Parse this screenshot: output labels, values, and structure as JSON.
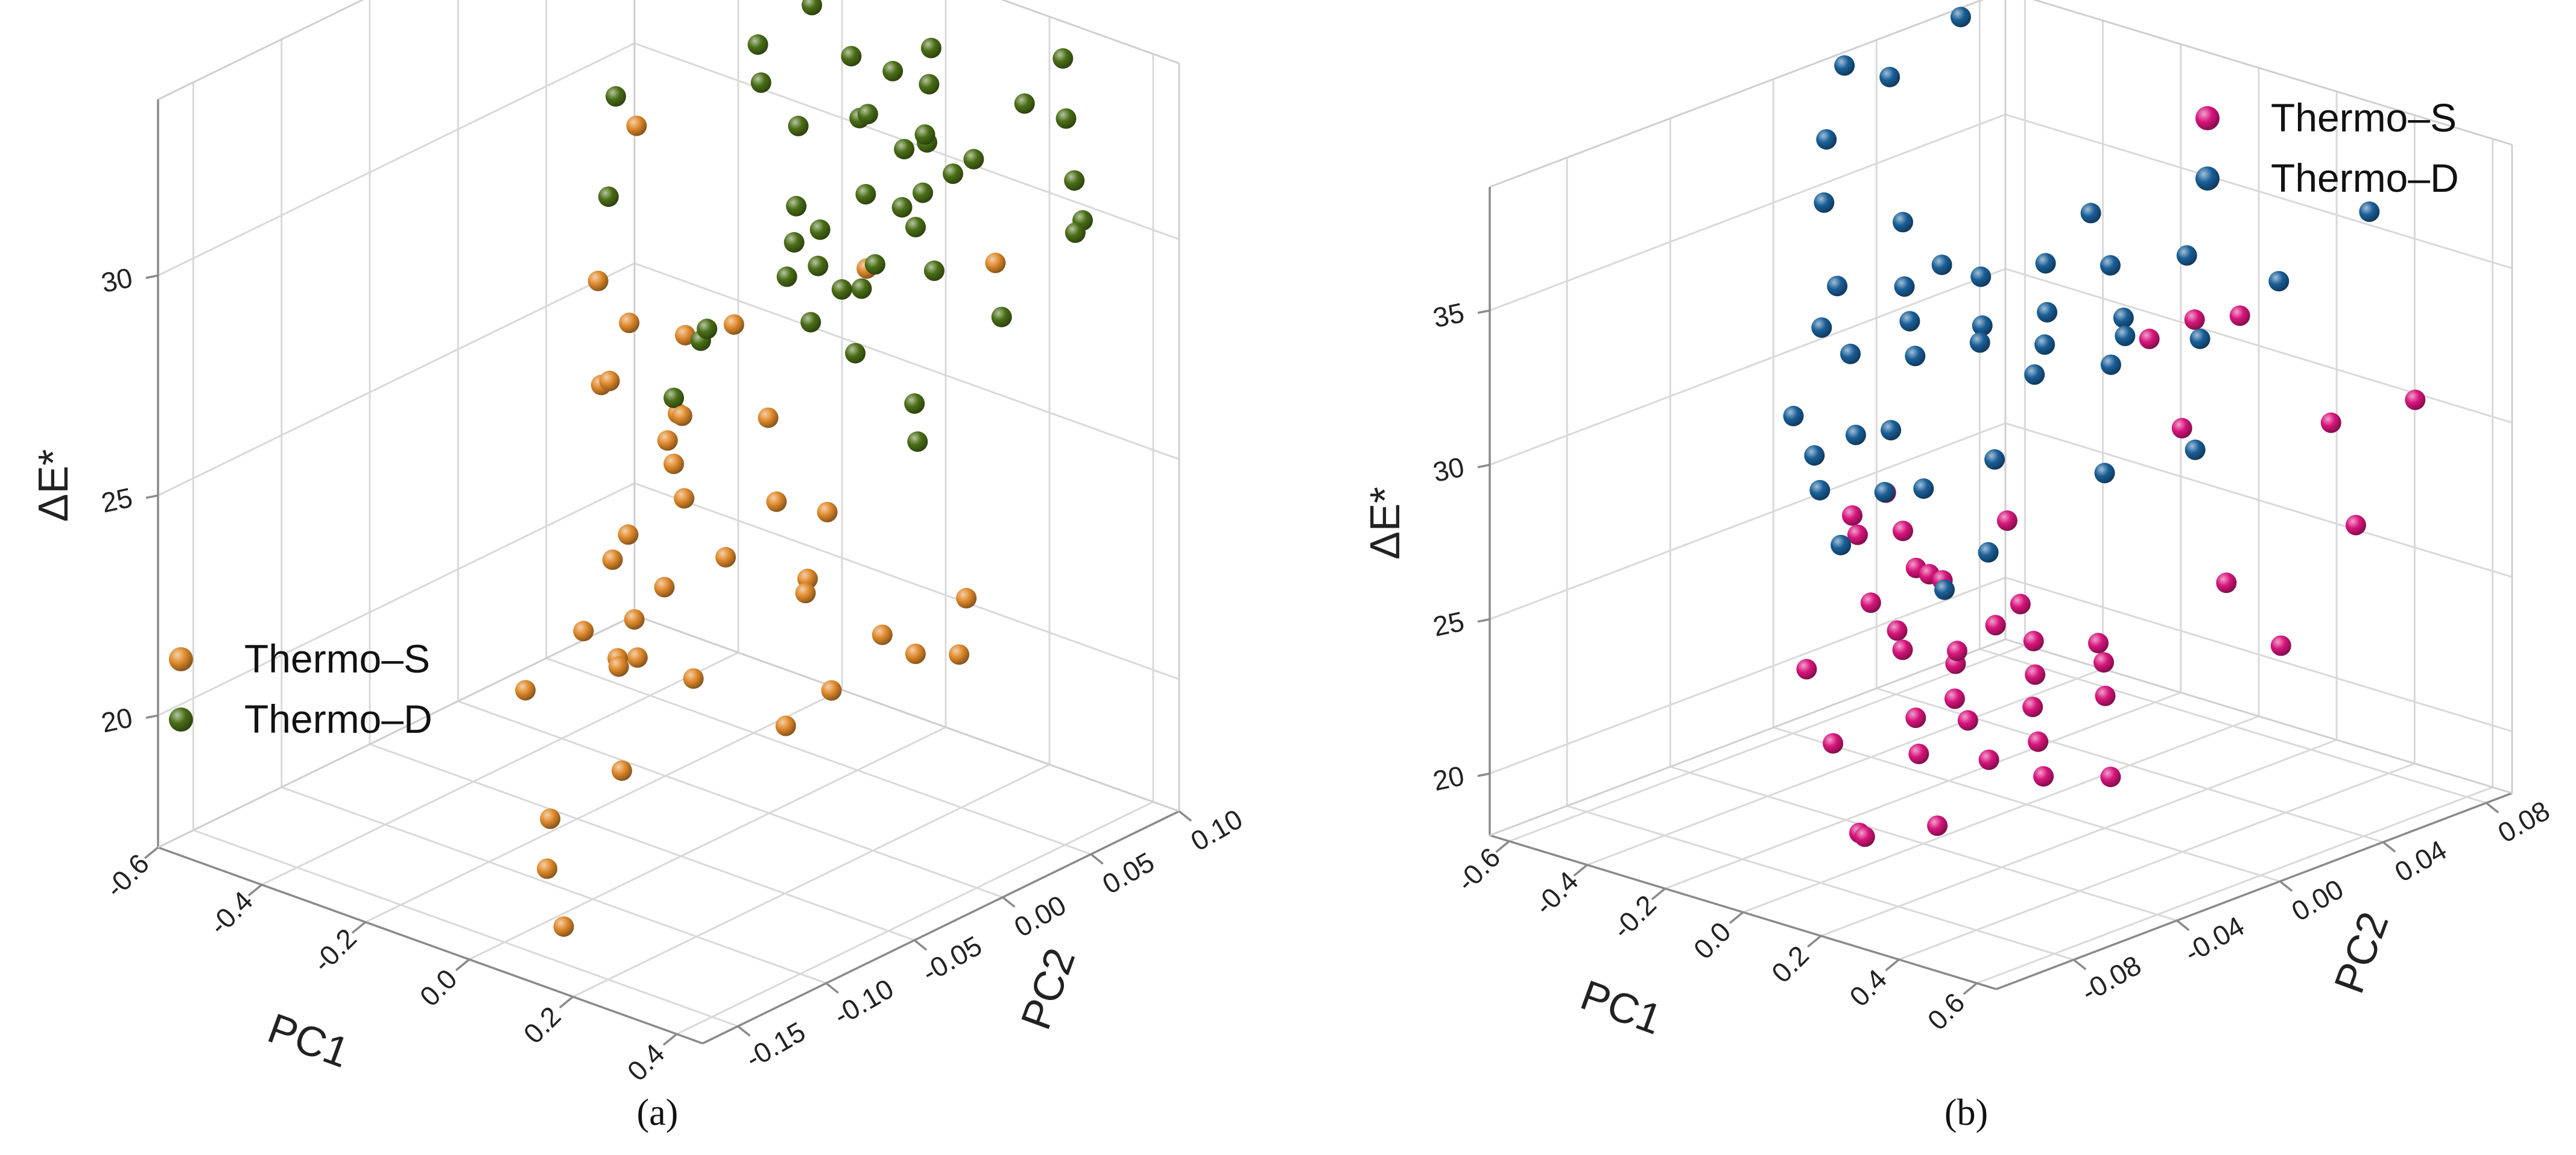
{
  "colors": {
    "thermo_s_a": "#e08a2c",
    "thermo_d_a": "#4a6e16",
    "thermo_s_b": "#d8157c",
    "thermo_d_b": "#1a5f98"
  },
  "chart_data": [
    {
      "type": "scatter",
      "subtype": "3d-scatter",
      "caption": "(a)",
      "xlabel": "PC1",
      "ylabel": "PC2",
      "zlabel": "ΔE*",
      "xlim": [
        -0.6,
        0.45
      ],
      "ylim": [
        -0.17,
        0.1
      ],
      "zlim": [
        17,
        34
      ],
      "x_ticks": [
        "-0.6",
        "-0.4",
        "-0.2",
        "0.0",
        "0.2",
        "0.4"
      ],
      "y_ticks": [
        "-0.15",
        "-0.10",
        "-0.05",
        "0.00",
        "0.05",
        "0.10"
      ],
      "z_ticks": [
        "20",
        "25",
        "30"
      ],
      "grid": true,
      "legend": {
        "position": "bottom-left",
        "entries": [
          "Thermo–S",
          "Thermo–D"
        ]
      },
      "series": [
        {
          "name": "Thermo–S",
          "points": [
            [
              -0.46,
              0.06,
              29.5
            ],
            [
              -0.5,
              0.05,
              26.0
            ],
            [
              -0.46,
              0.04,
              24.0
            ],
            [
              -0.41,
              0.03,
              24.5
            ],
            [
              -0.34,
              0.02,
              21.5
            ],
            [
              -0.27,
              -0.0,
              27.0
            ],
            [
              -0.23,
              0.02,
              26.5
            ],
            [
              -0.21,
              0.01,
              25.0
            ],
            [
              -0.15,
              -0.01,
              24.5
            ],
            [
              -0.2,
              -0.03,
              22.5
            ],
            [
              -0.1,
              -0.02,
              26.0
            ],
            [
              -0.06,
              -0.04,
              26.0
            ],
            [
              -0.09,
              -0.05,
              22.0
            ],
            [
              -0.05,
              -0.06,
              21.5
            ],
            [
              -0.02,
              -0.08,
              22.0
            ],
            [
              0.04,
              -0.06,
              25.5
            ],
            [
              0.07,
              -0.08,
              24.0
            ],
            [
              0.1,
              -0.03,
              27.0
            ],
            [
              0.12,
              -0.06,
              24.5
            ],
            [
              0.15,
              -0.04,
              25.5
            ],
            [
              0.18,
              -0.02,
              25.0
            ],
            [
              0.21,
              -0.04,
              24.0
            ],
            [
              0.05,
              -0.1,
              22.5
            ],
            [
              0.09,
              -0.11,
              20.5
            ],
            [
              0.16,
              -0.09,
              22.5
            ],
            [
              0.24,
              -0.05,
              24.0
            ],
            [
              0.27,
              -0.07,
              21.5
            ],
            [
              0.29,
              -0.05,
              22.0
            ],
            [
              0.32,
              -0.03,
              23.0
            ],
            [
              0.35,
              -0.02,
              22.5
            ],
            [
              0.38,
              0.0,
              23.5
            ],
            [
              0.4,
              -0.01,
              22.5
            ],
            [
              0.02,
              -0.13,
              19.5
            ],
            [
              0.08,
              -0.14,
              17.5
            ],
            [
              -0.02,
              -0.12,
              18.0
            ],
            [
              -0.12,
              -0.07,
              22.0
            ],
            [
              0.0,
              -0.02,
              28.5
            ],
            [
              0.12,
              0.02,
              29.5
            ],
            [
              0.3,
              0.04,
              30.0
            ],
            [
              -0.3,
              -0.05,
              19.5
            ]
          ]
        },
        {
          "name": "Thermo–D",
          "points": [
            [
              -0.55,
              0.07,
              33.5
            ],
            [
              -0.5,
              0.06,
              30.0
            ],
            [
              -0.48,
              0.05,
              28.0
            ],
            [
              -0.4,
              0.08,
              33.5
            ],
            [
              -0.33,
              0.09,
              34.5
            ],
            [
              -0.3,
              0.08,
              34.0
            ],
            [
              -0.26,
              0.07,
              32.0
            ],
            [
              -0.22,
              0.06,
              31.5
            ],
            [
              -0.19,
              0.08,
              33.0
            ],
            [
              -0.14,
              0.09,
              34.5
            ],
            [
              -0.1,
              0.08,
              34.0
            ],
            [
              -0.08,
              0.07,
              32.5
            ],
            [
              -0.03,
              0.06,
              31.5
            ],
            [
              0.0,
              0.07,
              32.5
            ],
            [
              0.04,
              0.08,
              33.0
            ],
            [
              0.07,
              0.07,
              32.5
            ],
            [
              0.1,
              0.06,
              31.5
            ],
            [
              0.13,
              0.05,
              32.0
            ],
            [
              0.16,
              0.04,
              31.0
            ],
            [
              0.19,
              0.06,
              31.5
            ],
            [
              0.22,
              0.08,
              32.5
            ],
            [
              0.26,
              0.09,
              33.5
            ],
            [
              0.3,
              0.08,
              32.5
            ],
            [
              0.35,
              0.07,
              31.5
            ],
            [
              0.4,
              0.06,
              31.0
            ],
            [
              -0.05,
              0.03,
              30.0
            ],
            [
              -0.02,
              0.02,
              29.5
            ],
            [
              0.0,
              0.01,
              29.0
            ],
            [
              0.03,
              0.02,
              30.0
            ],
            [
              0.06,
              0.01,
              29.5
            ],
            [
              0.08,
              0.0,
              28.5
            ],
            [
              0.11,
              0.02,
              29.0
            ],
            [
              0.14,
              0.0,
              29.5
            ],
            [
              0.17,
              0.01,
              30.0
            ],
            [
              0.2,
              -0.01,
              28.5
            ],
            [
              -0.12,
              0.0,
              27.5
            ],
            [
              -0.15,
              -0.01,
              26.0
            ],
            [
              -0.2,
              0.02,
              26.5
            ],
            [
              0.25,
              0.02,
              30.0
            ],
            [
              0.28,
              0.0,
              27.5
            ],
            [
              0.32,
              -0.01,
              27.0
            ],
            [
              0.38,
              0.02,
              29.5
            ],
            [
              0.42,
              0.05,
              31.0
            ],
            [
              -0.08,
              0.04,
              31.5
            ],
            [
              0.02,
              0.05,
              32.0
            ],
            [
              0.05,
              0.04,
              30.5
            ],
            [
              0.09,
              0.05,
              31.5
            ],
            [
              0.12,
              0.04,
              30.5
            ],
            [
              0.15,
              0.06,
              31.0
            ],
            [
              0.18,
              0.03,
              30.5
            ]
          ]
        }
      ]
    },
    {
      "type": "scatter",
      "subtype": "3d-scatter",
      "caption": "(b)",
      "xlabel": "PC1",
      "ylabel": "PC2",
      "zlabel": "ΔE*",
      "xlim": [
        -0.65,
        0.65
      ],
      "ylim": [
        -0.11,
        0.09
      ],
      "zlim": [
        18,
        39
      ],
      "x_ticks": [
        "-0.6",
        "-0.4",
        "-0.2",
        "0.0",
        "0.2",
        "0.4",
        "0.6"
      ],
      "y_ticks": [
        "-0.08",
        "-0.04",
        "0.00",
        "0.04",
        "0.08"
      ],
      "z_ticks": [
        "20",
        "25",
        "30",
        "35"
      ],
      "grid": true,
      "legend": {
        "position": "top-right",
        "entries": [
          "Thermo–S",
          "Thermo–D"
        ]
      },
      "series": [
        {
          "name": "Thermo–S",
          "points": [
            [
              -0.58,
              0.02,
              24.5
            ],
            [
              -0.56,
              0.03,
              25.0
            ],
            [
              -0.5,
              0.01,
              24.5
            ],
            [
              -0.45,
              0.02,
              24.5
            ],
            [
              -0.4,
              0.0,
              23.0
            ],
            [
              -0.35,
              0.01,
              24.0
            ],
            [
              -0.25,
              0.0,
              24.5
            ],
            [
              -0.2,
              -0.02,
              23.5
            ],
            [
              -0.15,
              -0.01,
              25.0
            ],
            [
              -0.12,
              -0.03,
              23.5
            ],
            [
              -0.08,
              0.0,
              23.5
            ],
            [
              -0.05,
              -0.02,
              23.0
            ],
            [
              -0.02,
              -0.04,
              22.0
            ],
            [
              0.02,
              -0.03,
              24.0
            ],
            [
              0.05,
              -0.01,
              25.0
            ],
            [
              0.08,
              -0.04,
              23.0
            ],
            [
              0.12,
              -0.06,
              22.0
            ],
            [
              0.15,
              -0.02,
              24.5
            ],
            [
              0.18,
              -0.05,
              23.0
            ],
            [
              0.22,
              -0.03,
              24.0
            ],
            [
              0.25,
              -0.01,
              24.5
            ],
            [
              0.28,
              -0.04,
              23.5
            ],
            [
              0.3,
              -0.06,
              22.5
            ],
            [
              0.33,
              -0.02,
              24.5
            ],
            [
              0.36,
              -0.05,
              23.0
            ],
            [
              0.4,
              -0.03,
              24.0
            ],
            [
              0.44,
              -0.06,
              22.5
            ],
            [
              0.48,
              -0.04,
              22.0
            ],
            [
              0.52,
              0.02,
              24.5
            ],
            [
              0.58,
              0.04,
              28.0
            ],
            [
              0.6,
              0.06,
              31.5
            ],
            [
              0.1,
              -0.08,
              20.0
            ],
            [
              0.18,
              -0.09,
              20.5
            ],
            [
              0.3,
              -0.08,
              21.0
            ],
            [
              -0.1,
              -0.06,
              21.5
            ],
            [
              0.05,
              0.04,
              32.0
            ],
            [
              0.1,
              0.05,
              32.5
            ],
            [
              0.15,
              0.06,
              32.5
            ],
            [
              0.2,
              0.03,
              30.0
            ],
            [
              0.45,
              0.05,
              30.5
            ],
            [
              -0.05,
              0.0,
              27.0
            ],
            [
              -0.3,
              -0.04,
              22.5
            ],
            [
              0.38,
              0.02,
              26.0
            ]
          ]
        },
        {
          "name": "Thermo–D",
          "points": [
            [
              -0.6,
              0.02,
              39.0
            ],
            [
              -0.58,
              0.01,
              37.0
            ],
            [
              -0.55,
              0.03,
              38.5
            ],
            [
              -0.5,
              0.05,
              40.0
            ],
            [
              -0.52,
              0.0,
              35.5
            ],
            [
              -0.45,
              0.02,
              34.5
            ],
            [
              -0.42,
              -0.01,
              33.5
            ],
            [
              -0.38,
              0.01,
              33.0
            ],
            [
              -0.35,
              0.02,
              33.5
            ],
            [
              -0.32,
              -0.02,
              32.0
            ],
            [
              -0.3,
              0.0,
              32.5
            ],
            [
              -0.25,
              0.02,
              33.5
            ],
            [
              -0.22,
              -0.01,
              32.0
            ],
            [
              -0.18,
              0.01,
              32.5
            ],
            [
              -0.15,
              0.03,
              34.0
            ],
            [
              -0.12,
              0.0,
              32.5
            ],
            [
              -0.08,
              0.02,
              33.0
            ],
            [
              -0.05,
              0.04,
              34.0
            ],
            [
              -0.02,
              0.01,
              32.5
            ],
            [
              0.02,
              0.0,
              32.0
            ],
            [
              0.05,
              0.03,
              33.0
            ],
            [
              0.08,
              0.05,
              34.5
            ],
            [
              0.12,
              0.02,
              33.0
            ],
            [
              0.15,
              0.01,
              32.5
            ],
            [
              0.18,
              0.04,
              32.5
            ],
            [
              0.25,
              0.06,
              34.0
            ],
            [
              0.35,
              0.08,
              36.0
            ],
            [
              -0.28,
              -0.04,
              29.5
            ],
            [
              -0.24,
              -0.03,
              30.0
            ],
            [
              -0.2,
              -0.05,
              29.0
            ],
            [
              -0.15,
              -0.03,
              30.5
            ],
            [
              -0.1,
              -0.04,
              29.0
            ],
            [
              -0.08,
              -0.06,
              28.0
            ],
            [
              0.0,
              -0.04,
              29.5
            ],
            [
              0.05,
              -0.02,
              30.0
            ],
            [
              0.1,
              -0.03,
              27.5
            ],
            [
              0.12,
              -0.05,
              27.0
            ],
            [
              -0.4,
              -0.03,
              30.0
            ],
            [
              -0.46,
              -0.01,
              32.0
            ],
            [
              0.2,
              0.0,
              29.5
            ],
            [
              -0.1,
              0.04,
              35.5
            ],
            [
              0.3,
              0.02,
              30.0
            ]
          ]
        }
      ]
    }
  ]
}
